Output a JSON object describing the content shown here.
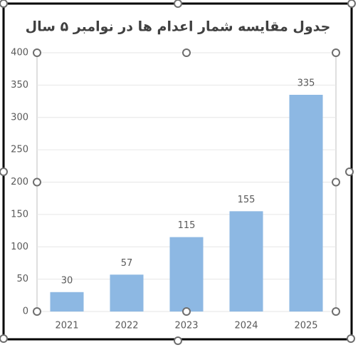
{
  "chart_data": {
    "type": "bar",
    "title": "جدول مقایسه شمار اعدام ها در نوامبر ۵ سال",
    "categories": [
      "2021",
      "2022",
      "2023",
      "2024",
      "2025"
    ],
    "values": [
      30,
      57,
      115,
      155,
      335
    ],
    "color": "#8db8e3",
    "ylim": [
      0,
      400
    ],
    "yticks": [
      0,
      50,
      100,
      150,
      200,
      250,
      300,
      350,
      400
    ],
    "grid": true
  }
}
